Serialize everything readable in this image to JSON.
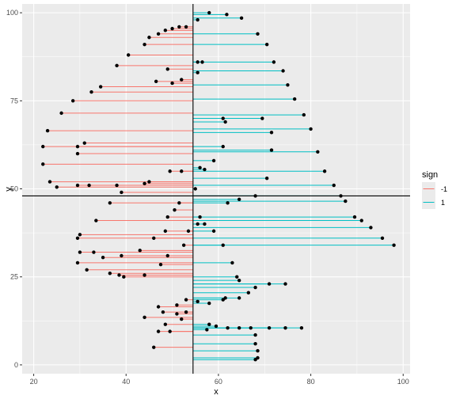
{
  "chart_data": {
    "type": "scatter",
    "subtype": "segments-from-vertical-reference",
    "xlabel": "x",
    "ylabel": "y",
    "xlim": [
      17.5,
      101.5
    ],
    "ylim": [
      -2.5,
      102.5
    ],
    "xticks": [
      20,
      40,
      60,
      80,
      100
    ],
    "yticks": [
      0,
      25,
      50,
      75,
      100
    ],
    "grid": true,
    "reference_lines": {
      "vertical_x": 54.5,
      "horizontal_y": 48
    },
    "legend": {
      "title": "sign",
      "position": "right",
      "entries": [
        {
          "label": "-1",
          "color": "#F8766D"
        },
        {
          "label": "1",
          "color": "#00BFC4"
        }
      ]
    },
    "colors": {
      "negative": "#F8766D",
      "positive": "#00BFC4",
      "point": "#000000",
      "panel": "#EBEBEB",
      "grid": "#FFFFFF"
    },
    "points": [
      [
        58,
        100
      ],
      [
        61.8,
        99.5
      ],
      [
        55.5,
        98
      ],
      [
        65,
        98.5
      ],
      [
        53,
        96
      ],
      [
        51.5,
        96
      ],
      [
        50,
        95.5
      ],
      [
        48.5,
        95
      ],
      [
        47,
        94
      ],
      [
        68.5,
        94
      ],
      [
        45,
        93
      ],
      [
        44,
        91
      ],
      [
        70.5,
        91
      ],
      [
        40.5,
        88
      ],
      [
        72,
        86
      ],
      [
        56.5,
        86
      ],
      [
        55.5,
        86
      ],
      [
        38,
        85
      ],
      [
        74,
        83.5
      ],
      [
        55.5,
        83
      ],
      [
        49,
        84
      ],
      [
        46.5,
        80.5
      ],
      [
        52,
        81
      ],
      [
        50,
        80
      ],
      [
        75,
        79.5
      ],
      [
        34.5,
        79
      ],
      [
        32.5,
        77.5
      ],
      [
        76.5,
        75.5
      ],
      [
        28.5,
        75
      ],
      [
        78.5,
        71
      ],
      [
        26,
        71.5
      ],
      [
        61,
        70
      ],
      [
        69.5,
        70
      ],
      [
        61.5,
        69
      ],
      [
        80,
        67
      ],
      [
        23,
        66.5
      ],
      [
        71.5,
        66
      ],
      [
        31,
        63
      ],
      [
        29.5,
        62
      ],
      [
        22,
        62
      ],
      [
        61,
        62
      ],
      [
        71.5,
        61
      ],
      [
        81.5,
        60.5
      ],
      [
        29.5,
        60
      ],
      [
        59,
        58
      ],
      [
        22,
        57
      ],
      [
        56,
        56
      ],
      [
        57,
        55.5
      ],
      [
        52,
        55
      ],
      [
        83,
        55
      ],
      [
        49.5,
        55
      ],
      [
        70.5,
        53
      ],
      [
        45,
        52
      ],
      [
        23.5,
        52
      ],
      [
        44,
        51.5
      ],
      [
        85,
        51
      ],
      [
        38,
        51
      ],
      [
        32,
        51
      ],
      [
        29.5,
        51
      ],
      [
        25,
        50.5
      ],
      [
        55,
        50
      ],
      [
        39,
        49
      ],
      [
        68,
        48
      ],
      [
        86.5,
        48
      ],
      [
        64.5,
        47
      ],
      [
        87.5,
        46.5
      ],
      [
        62,
        46
      ],
      [
        36.5,
        46
      ],
      [
        51.5,
        46
      ],
      [
        50.5,
        44
      ],
      [
        89.5,
        42
      ],
      [
        49,
        42
      ],
      [
        56,
        42
      ],
      [
        91,
        41
      ],
      [
        33.5,
        41
      ],
      [
        55.5,
        40
      ],
      [
        57,
        40
      ],
      [
        93,
        39
      ],
      [
        59,
        38
      ],
      [
        48.5,
        38
      ],
      [
        53.5,
        38
      ],
      [
        30,
        37
      ],
      [
        29.5,
        36
      ],
      [
        95.5,
        36
      ],
      [
        46,
        36
      ],
      [
        52.5,
        34
      ],
      [
        61,
        34
      ],
      [
        98,
        34
      ],
      [
        30,
        32
      ],
      [
        43,
        32.5
      ],
      [
        33,
        32
      ],
      [
        49,
        31
      ],
      [
        39,
        31
      ],
      [
        35,
        30.5
      ],
      [
        29.5,
        29
      ],
      [
        63,
        29
      ],
      [
        47.5,
        28.5
      ],
      [
        31.5,
        27
      ],
      [
        36.5,
        26
      ],
      [
        38.5,
        25.5
      ],
      [
        44,
        25.5
      ],
      [
        39.5,
        25
      ],
      [
        64,
        25
      ],
      [
        64.5,
        24
      ],
      [
        74.5,
        23
      ],
      [
        71,
        23
      ],
      [
        68,
        22
      ],
      [
        66.5,
        20.5
      ],
      [
        64.5,
        19
      ],
      [
        61.5,
        19
      ],
      [
        61,
        18.5
      ],
      [
        55.5,
        18
      ],
      [
        53,
        18.5
      ],
      [
        58,
        17.5
      ],
      [
        51,
        17
      ],
      [
        47,
        16.5
      ],
      [
        53,
        15
      ],
      [
        48,
        15
      ],
      [
        51,
        14.5
      ],
      [
        44,
        13.5
      ],
      [
        52,
        13
      ],
      [
        58,
        11.5
      ],
      [
        48.5,
        11.5
      ],
      [
        59.5,
        11
      ],
      [
        62,
        10.5
      ],
      [
        78,
        10.5
      ],
      [
        74.5,
        10.5
      ],
      [
        71,
        10.5
      ],
      [
        67,
        10.5
      ],
      [
        64.5,
        10.5
      ],
      [
        57.5,
        10
      ],
      [
        49.5,
        9.5
      ],
      [
        47,
        9.5
      ],
      [
        68,
        8.5
      ],
      [
        68,
        6
      ],
      [
        46,
        5
      ],
      [
        68.5,
        4
      ],
      [
        68.5,
        2
      ],
      [
        68,
        1.5
      ]
    ]
  }
}
